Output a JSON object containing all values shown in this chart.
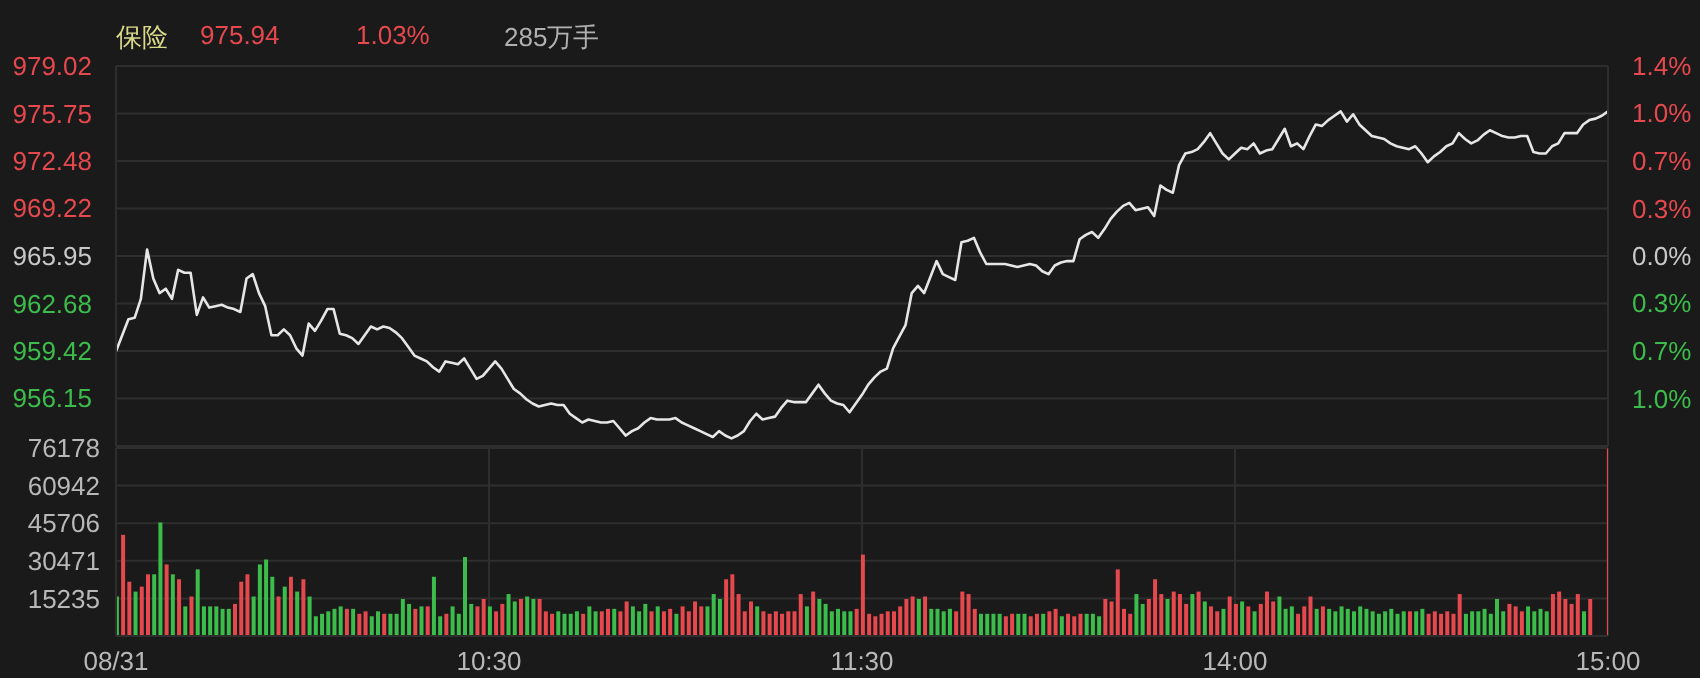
{
  "chart_data": [
    {
      "type": "line",
      "title": "保险",
      "annotations": [
        "975.94",
        "1.03%",
        "285万手"
      ],
      "categories": [
        null,
        null,
        null,
        null,
        null,
        null,
        null,
        null,
        null,
        null,
        null,
        null,
        null,
        null,
        null,
        null,
        null,
        null,
        null,
        null,
        null,
        null,
        null,
        null,
        null,
        null,
        null,
        null,
        null,
        null,
        null,
        null,
        null,
        null,
        null,
        null,
        null,
        null,
        null,
        null,
        null,
        null,
        null,
        null,
        null,
        null,
        null,
        null,
        null,
        null,
        null,
        null,
        null,
        null,
        null,
        null,
        null,
        null,
        null,
        null,
        null,
        null,
        null,
        null,
        null,
        null,
        null,
        null,
        null,
        null,
        null,
        null,
        null,
        null,
        null,
        null,
        null,
        null,
        null,
        null,
        null,
        null,
        null,
        null,
        null,
        null,
        null,
        null,
        null,
        null,
        null,
        null,
        null,
        null,
        null,
        null,
        null,
        null,
        null,
        null,
        null,
        null,
        null,
        null,
        null,
        null,
        null,
        null,
        null,
        null,
        null,
        null,
        null,
        null,
        null,
        null,
        null,
        null,
        null,
        null,
        null,
        null,
        null,
        null,
        null,
        null,
        null,
        null,
        null,
        null,
        null,
        null,
        null,
        null,
        null,
        null,
        null,
        null,
        null,
        null,
        null,
        null,
        null,
        null,
        null,
        null,
        null,
        null,
        null,
        null,
        null,
        null,
        null,
        null,
        null,
        null,
        null,
        null,
        null,
        null,
        null,
        null,
        null,
        null,
        null,
        null,
        null,
        null,
        null,
        null,
        null,
        null,
        null,
        null,
        null,
        null,
        null,
        null,
        null,
        null,
        null,
        null,
        null,
        null,
        null,
        null,
        null,
        null,
        null,
        null,
        null,
        null,
        null,
        null,
        null,
        null,
        null,
        null,
        null,
        null,
        null,
        null,
        null,
        null,
        null,
        null,
        null,
        null,
        null,
        null,
        null,
        null,
        null,
        null,
        null,
        null,
        null,
        null,
        null,
        null,
        null,
        null,
        null,
        null,
        null,
        null,
        null,
        null,
        null,
        null,
        null,
        null,
        null,
        null,
        null,
        null,
        null,
        null,
        null,
        null,
        null
      ],
      "series": [
        {
          "color": "#e6e6e6",
          "values": [
            959.4,
            960.5,
            961.6,
            961.7,
            963.0,
            966.4,
            964.4,
            963.4,
            963.7,
            963.0,
            965.0,
            964.8,
            964.8,
            961.9,
            963.1,
            962.4,
            962.5,
            962.6,
            962.4,
            962.3,
            962.1,
            964.4,
            964.7,
            963.4,
            962.5,
            960.5,
            960.5,
            960.9,
            960.5,
            959.6,
            959.1,
            961.3,
            960.8,
            961.5,
            962.3,
            962.3,
            960.6,
            960.5,
            960.3,
            959.9,
            960.5,
            961.1,
            960.9,
            961.1,
            961.0,
            960.7,
            960.3,
            959.7,
            959.1,
            958.9,
            958.7,
            958.3,
            958.0,
            958.7,
            958.6,
            958.5,
            958.9,
            958.2,
            957.5,
            957.7,
            958.2,
            958.7,
            958.2,
            957.5,
            956.8,
            956.5,
            956.1,
            955.8,
            955.6,
            955.7,
            955.8,
            955.7,
            955.7,
            955.1,
            954.8,
            954.5,
            954.7,
            954.6,
            954.5,
            954.5,
            954.6,
            954.1,
            953.6,
            953.9,
            954.1,
            954.5,
            954.8,
            954.7,
            954.7,
            954.7,
            954.8,
            954.5,
            954.3,
            954.1,
            953.9,
            953.7,
            953.5,
            953.9,
            953.6,
            953.4,
            953.6,
            953.9,
            954.6,
            955.1,
            954.7,
            954.8,
            954.9,
            955.5,
            956.0,
            955.9,
            955.9,
            955.9,
            956.5,
            957.1,
            956.5,
            956.0,
            955.8,
            955.7,
            955.2,
            955.8,
            956.4,
            957.1,
            957.6,
            958.0,
            958.2,
            959.6,
            960.4,
            961.2,
            963.4,
            963.9,
            963.4,
            964.5,
            965.6,
            964.7,
            964.5,
            964.3,
            966.9,
            967.0,
            967.2,
            966.2,
            965.4,
            965.4,
            965.4,
            965.4,
            965.3,
            965.2,
            965.3,
            965.4,
            965.3,
            964.9,
            964.7,
            965.3,
            965.5,
            965.6,
            965.6,
            967.1,
            967.4,
            967.6,
            967.2,
            967.8,
            968.5,
            969.0,
            969.4,
            969.6,
            969.1,
            969.2,
            969.3,
            968.7,
            970.8,
            970.5,
            970.3,
            972.2,
            973.0,
            973.1,
            973.3,
            973.8,
            974.4,
            973.7,
            973.0,
            972.6,
            973.0,
            973.4,
            973.3,
            973.7,
            973.0,
            973.2,
            973.3,
            974.0,
            974.7,
            973.5,
            973.7,
            973.3,
            974.2,
            975.0,
            974.9,
            975.3,
            975.6,
            975.9,
            975.2,
            975.7,
            975.0,
            974.6,
            974.2,
            974.1,
            974.0,
            973.7,
            973.5,
            973.4,
            973.3,
            973.5,
            973.0,
            972.4,
            972.8,
            973.1,
            973.5,
            973.7,
            974.4,
            974.0,
            973.7,
            973.9,
            974.3,
            974.6,
            974.4,
            974.2,
            974.1,
            974.1,
            974.2,
            974.2,
            973.1,
            973.0,
            973.0,
            973.5,
            973.7,
            974.4,
            974.4,
            974.4,
            975.0,
            975.3,
            975.4,
            975.6,
            975.9
          ]
        }
      ],
      "ylim": [
        952.88,
        979.02
      ],
      "yticks": [
        956.15,
        959.42,
        962.68,
        965.95,
        969.22,
        972.48,
        975.75,
        979.02
      ],
      "y2lim": [
        -1.353,
        1.353
      ],
      "y2ticks": [
        {
          "value": -1.015,
          "label": "1.0%"
        },
        {
          "value": -0.677,
          "label": "0.7%"
        },
        {
          "value": -0.338,
          "label": "0.3%"
        },
        {
          "value": 0,
          "label": "0.0%"
        },
        {
          "value": 0.338,
          "label": "0.3%"
        },
        {
          "value": 0.677,
          "label": "0.7%"
        },
        {
          "value": 1.015,
          "label": "1.0%"
        },
        {
          "value": 1.353,
          "label": "1.4%"
        }
      ],
      "tick_labels": "y",
      "grid": true
    },
    {
      "type": "bar",
      "categories": [
        "08/31",
        null,
        null,
        null,
        null,
        null,
        null,
        null,
        null,
        null,
        null,
        null,
        null,
        null,
        null,
        null,
        null,
        null,
        null,
        null,
        null,
        null,
        null,
        null,
        null,
        null,
        null,
        null,
        null,
        null,
        null,
        null,
        null,
        null,
        null,
        null,
        null,
        null,
        null,
        null,
        null,
        null,
        null,
        null,
        null,
        null,
        null,
        null,
        null,
        null,
        null,
        null,
        null,
        null,
        null,
        null,
        null,
        null,
        null,
        null,
        "10:30",
        null,
        null,
        null,
        null,
        null,
        null,
        null,
        null,
        null,
        null,
        null,
        null,
        null,
        null,
        null,
        null,
        null,
        null,
        null,
        null,
        null,
        null,
        null,
        null,
        null,
        null,
        null,
        null,
        null,
        null,
        null,
        null,
        null,
        null,
        null,
        null,
        null,
        null,
        null,
        null,
        null,
        null,
        null,
        null,
        null,
        null,
        null,
        null,
        null,
        null,
        null,
        null,
        null,
        null,
        null,
        null,
        null,
        null,
        null,
        "11:30",
        null,
        null,
        null,
        null,
        null,
        null,
        null,
        null,
        null,
        null,
        null,
        null,
        null,
        null,
        null,
        null,
        null,
        null,
        null,
        null,
        null,
        null,
        null,
        null,
        null,
        null,
        null,
        null,
        null,
        null,
        null,
        null,
        null,
        null,
        null,
        null,
        null,
        null,
        null,
        null,
        null,
        null,
        null,
        null,
        null,
        null,
        null,
        null,
        null,
        null,
        null,
        null,
        null,
        null,
        null,
        null,
        null,
        null,
        null,
        "14:00",
        null,
        null,
        null,
        null,
        null,
        null,
        null,
        null,
        null,
        null,
        null,
        null,
        null,
        null,
        null,
        null,
        null,
        null,
        null,
        null,
        null,
        null,
        null,
        null,
        null,
        null,
        null,
        null,
        null,
        null,
        null,
        null,
        null,
        null,
        null,
        null,
        null,
        null,
        null,
        null,
        null,
        null,
        null,
        null,
        null,
        null,
        null,
        null,
        null,
        null,
        null,
        null,
        null,
        null,
        null,
        null,
        null,
        null,
        null,
        "15:00"
      ],
      "values": [
        16000,
        41000,
        22000,
        18000,
        20000,
        25000,
        25000,
        46000,
        29000,
        25000,
        23000,
        12000,
        16000,
        27000,
        12000,
        12000,
        12000,
        11000,
        11000,
        13000,
        22000,
        25000,
        16000,
        29000,
        31000,
        24000,
        16000,
        20000,
        24000,
        18000,
        23000,
        16000,
        8000,
        9000,
        10000,
        11000,
        12000,
        11000,
        11000,
        9000,
        10000,
        8000,
        10000,
        9000,
        9000,
        9000,
        15000,
        13000,
        11000,
        12000,
        12000,
        24000,
        8000,
        9000,
        12000,
        9000,
        32000,
        13000,
        12000,
        15000,
        12000,
        10000,
        13000,
        17000,
        14000,
        15000,
        16000,
        15000,
        15000,
        10000,
        9000,
        10000,
        9000,
        9000,
        10000,
        9000,
        12000,
        10000,
        10000,
        11000,
        11000,
        10000,
        14000,
        12000,
        10000,
        13000,
        10000,
        12000,
        10000,
        11000,
        9000,
        12000,
        10000,
        14000,
        12000,
        12000,
        17000,
        15000,
        23000,
        25000,
        17000,
        10000,
        14000,
        12000,
        10000,
        9000,
        10000,
        9000,
        10000,
        10000,
        17000,
        12000,
        18000,
        15000,
        13000,
        10000,
        11000,
        10000,
        10000,
        11000,
        33000,
        9000,
        8000,
        9000,
        10000,
        10000,
        12000,
        15000,
        16000,
        15000,
        16000,
        11000,
        11000,
        10000,
        11000,
        10000,
        18000,
        17000,
        11000,
        9000,
        9000,
        9000,
        9000,
        8000,
        9000,
        9000,
        9000,
        8000,
        9000,
        9000,
        10000,
        11000,
        8000,
        9000,
        8000,
        9000,
        9000,
        9000,
        8000,
        15000,
        14000,
        27000,
        11000,
        9000,
        17000,
        13000,
        15000,
        23000,
        17000,
        15000,
        18000,
        17000,
        13000,
        17000,
        18000,
        14000,
        12000,
        10000,
        11000,
        16000,
        13000,
        14000,
        12000,
        10000,
        13000,
        18000,
        14000,
        16000,
        11000,
        12000,
        9000,
        12000,
        16000,
        11000,
        12000,
        11000,
        10000,
        12000,
        11000,
        10000,
        12000,
        11000,
        10000,
        9000,
        10000,
        11000,
        9000,
        10000,
        10000,
        10000,
        11000,
        9000,
        10000,
        9000,
        10000,
        9000,
        17000,
        9000,
        10000,
        10000,
        11000,
        9000,
        15000,
        10000,
        13000,
        12000,
        10000,
        12000,
        10000,
        11000,
        10000,
        17000,
        18000,
        15000,
        13000,
        17000,
        10000,
        15000,
        null,
        null,
        76000
      ],
      "colors": [
        "#3cbc4a",
        "#e5484d",
        "#e5484d",
        "#3cbc4a",
        "#e5484d",
        "#e5484d",
        "#3cbc4a",
        "#3cbc4a",
        "#e5484d",
        "#3cbc4a",
        "#e5484d",
        "#3cbc4a",
        "#e5484d",
        "#3cbc4a",
        "#3cbc4a",
        "#3cbc4a",
        "#3cbc4a",
        "#3cbc4a",
        "#3cbc4a",
        "#e5484d",
        "#e5484d",
        "#e5484d",
        "#3cbc4a",
        "#3cbc4a",
        "#3cbc4a",
        "#3cbc4a",
        "#e5484d",
        "#3cbc4a",
        "#e5484d",
        "#3cbc4a",
        "#e5484d",
        "#3cbc4a",
        "#3cbc4a",
        "#3cbc4a",
        "#3cbc4a",
        "#3cbc4a",
        "#3cbc4a",
        "#e5484d",
        "#3cbc4a",
        "#e5484d",
        "#e5484d",
        "#3cbc4a",
        "#3cbc4a",
        "#e5484d",
        "#3cbc4a",
        "#3cbc4a",
        "#3cbc4a",
        "#3cbc4a",
        "#e5484d",
        "#3cbc4a",
        "#e5484d",
        "#3cbc4a",
        "#3cbc4a",
        "#e5484d",
        "#3cbc4a",
        "#3cbc4a",
        "#3cbc4a",
        "#3cbc4a",
        "#e5484d",
        "#e5484d",
        "#3cbc4a",
        "#e5484d",
        "#e5484d",
        "#3cbc4a",
        "#3cbc4a",
        "#e5484d",
        "#3cbc4a",
        "#3cbc4a",
        "#e5484d",
        "#e5484d",
        "#e5484d",
        "#3cbc4a",
        "#3cbc4a",
        "#3cbc4a",
        "#3cbc4a",
        "#e5484d",
        "#3cbc4a",
        "#3cbc4a",
        "#e5484d",
        "#e5484d",
        "#3cbc4a",
        "#e5484d",
        "#e5484d",
        "#3cbc4a",
        "#3cbc4a",
        "#3cbc4a",
        "#e5484d",
        "#3cbc4a",
        "#e5484d",
        "#e5484d",
        "#3cbc4a",
        "#e5484d",
        "#e5484d",
        "#e5484d",
        "#e5484d",
        "#3cbc4a",
        "#3cbc4a",
        "#3cbc4a",
        "#e5484d",
        "#e5484d",
        "#e5484d",
        "#e5484d",
        "#e5484d",
        "#3cbc4a",
        "#e5484d",
        "#e5484d",
        "#e5484d",
        "#e5484d",
        "#e5484d",
        "#e5484d",
        "#e5484d",
        "#3cbc4a",
        "#e5484d",
        "#3cbc4a",
        "#3cbc4a",
        "#3cbc4a",
        "#3cbc4a",
        "#3cbc4a",
        "#3cbc4a",
        "#e5484d",
        "#e5484d",
        "#e5484d",
        "#e5484d",
        "#e5484d",
        "#e5484d",
        "#e5484d",
        "#e5484d",
        "#e5484d",
        "#e5484d",
        "#3cbc4a",
        "#e5484d",
        "#3cbc4a",
        "#3cbc4a",
        "#3cbc4a",
        "#3cbc4a",
        "#e5484d",
        "#e5484d",
        "#e5484d",
        "#e5484d",
        "#3cbc4a",
        "#3cbc4a",
        "#3cbc4a",
        "#3cbc4a",
        "#e5484d",
        "#e5484d",
        "#3cbc4a",
        "#3cbc4a",
        "#e5484d",
        "#e5484d",
        "#3cbc4a",
        "#e5484d",
        "#e5484d",
        "#3cbc4a",
        "#e5484d",
        "#e5484d",
        "#e5484d",
        "#3cbc4a",
        "#3cbc4a",
        "#3cbc4a",
        "#e5484d",
        "#e5484d",
        "#e5484d",
        "#e5484d",
        "#e5484d",
        "#3cbc4a",
        "#3cbc4a",
        "#e5484d",
        "#e5484d",
        "#e5484d",
        "#3cbc4a",
        "#e5484d",
        "#e5484d",
        "#e5484d",
        "#3cbc4a",
        "#e5484d",
        "#3cbc4a",
        "#e5484d",
        "#e5484d",
        "#3cbc4a",
        "#e5484d",
        "#e5484d",
        "#3cbc4a",
        "#e5484d",
        "#3cbc4a",
        "#e5484d",
        "#e5484d",
        "#e5484d",
        "#3cbc4a",
        "#3cbc4a",
        "#3cbc4a",
        "#e5484d",
        "#e5484d",
        "#e5484d",
        "#3cbc4a",
        "#e5484d",
        "#3cbc4a",
        "#3cbc4a",
        "#3cbc4a",
        "#3cbc4a",
        "#3cbc4a",
        "#3cbc4a",
        "#3cbc4a",
        "#3cbc4a",
        "#3cbc4a",
        "#3cbc4a",
        "#3cbc4a",
        "#3cbc4a",
        "#3cbc4a",
        "#e5484d",
        "#3cbc4a",
        "#3cbc4a",
        "#e5484d",
        "#e5484d",
        "#e5484d",
        "#e5484d",
        "#e5484d",
        "#e5484d",
        "#3cbc4a",
        "#3cbc4a",
        "#3cbc4a",
        "#3cbc4a",
        "#3cbc4a",
        "#3cbc4a",
        "#3cbc4a",
        "#e5484d",
        "#e5484d",
        "#e5484d",
        "#3cbc4a",
        "#3cbc4a",
        "#3cbc4a",
        "#3cbc4a",
        "#e5484d",
        "#e5484d",
        "#e5484d",
        "#e5484d",
        "#e5484d",
        "#3cbc4a",
        "#e5484d",
        null,
        null,
        "#e5484d"
      ],
      "ylim": [
        0,
        76178
      ],
      "yticks": [
        15235,
        30471,
        45706,
        60942,
        76178
      ],
      "grid": true
    }
  ]
}
